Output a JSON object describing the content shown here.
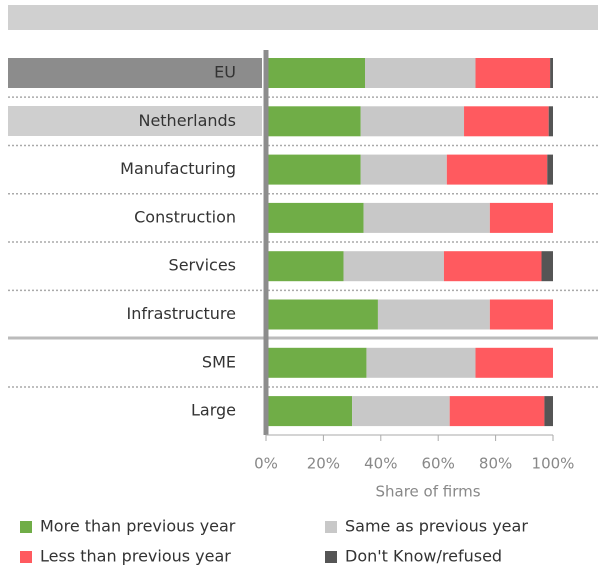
{
  "chart_data": {
    "type": "stacked-barh",
    "categories": [
      "EU",
      "Netherlands",
      "Manufacturing",
      "Construction",
      "Services",
      "Infrastructure",
      "SME",
      "Large"
    ],
    "series": [
      {
        "name": "More than previous year",
        "color": "#70ad47",
        "values": [
          34.5,
          33,
          33,
          34,
          27,
          39,
          35,
          30
        ]
      },
      {
        "name": "Same as previous year",
        "color": "#c8c8c8",
        "values": [
          38.5,
          36,
          30,
          44,
          35,
          39,
          38,
          34
        ]
      },
      {
        "name": "Less than previous year",
        "color": "#ff5a5f",
        "values": [
          26,
          29.5,
          35,
          22,
          34,
          22,
          27,
          33
        ]
      },
      {
        "name": "Don't Know/refused",
        "color": "#555555",
        "values": [
          1,
          1.5,
          2,
          0,
          4,
          0,
          0,
          3
        ]
      }
    ],
    "xlabel": "Share of firms",
    "xlim": [
      0,
      100
    ],
    "xticks": [
      {
        "value": 0,
        "label": "0%"
      },
      {
        "value": 20,
        "label": "20%"
      },
      {
        "value": 40,
        "label": "40%"
      },
      {
        "value": 60,
        "label": "60%"
      },
      {
        "value": 80,
        "label": "80%"
      },
      {
        "value": 100,
        "label": "100%"
      }
    ]
  }
}
